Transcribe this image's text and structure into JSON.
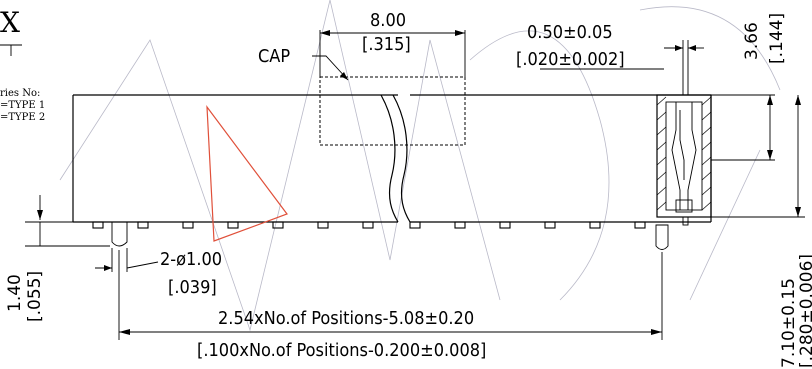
{
  "title_fragment": "X",
  "series_note": {
    "line1": "ries No:",
    "line2": "=TYPE 1",
    "line3": "=TYPE 2"
  },
  "labels": {
    "cap": "CAP"
  },
  "dimensions": {
    "cap_width_mm": "8.00",
    "cap_width_in": "[.315]",
    "pin_width_mm": "0.50±0.05",
    "pin_width_in": "[.020±0.002]",
    "pitch_right_mm": "3.66",
    "pitch_right_in": "[.144]",
    "hole_mm": "2-ø1.00",
    "hole_in": "[.039]",
    "post_mm": "1.40",
    "post_in": "[.055]",
    "length_mm": "2.54xNo.of Positions-5.08±0.20",
    "length_in": "[.100xNo.of Positions-0.200±0.008]",
    "height_mm": "7.10±0.15",
    "height_in": "[.280±0.006]"
  }
}
